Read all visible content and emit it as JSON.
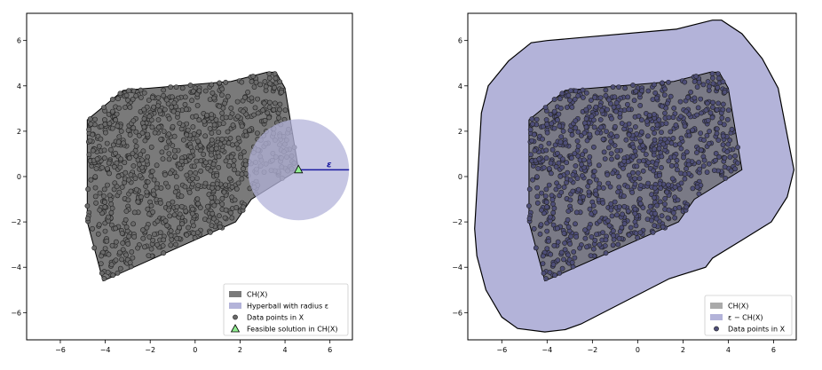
{
  "colors": {
    "hull_fill": "#7a7a7a",
    "hull_fill_right": "#7a7a86",
    "ball_fill": "#b3b3d9",
    "point_fill": "#6a6a6a",
    "point_fill_right": "#4e4e78",
    "point_edge": "#222222",
    "feasible_fill": "#90ee90",
    "eps_line": "#1a1aa0",
    "legend_hull_right": "#aaaaaa"
  },
  "chart_data": [
    {
      "type": "scatter",
      "xlim": [
        -7.5,
        7.0
      ],
      "ylim": [
        -7.2,
        7.2
      ],
      "xticks": [
        -6,
        -4,
        -2,
        0,
        2,
        4,
        6
      ],
      "yticks": [
        -6,
        -4,
        -2,
        0,
        2,
        4,
        6
      ],
      "xtick_labels": [
        "−6",
        "−4",
        "−2",
        "0",
        "2",
        "4",
        "6"
      ],
      "ytick_labels": [
        "−6",
        "−4",
        "−2",
        "0",
        "2",
        "4",
        "6"
      ],
      "grid": false,
      "legend_position": "lower-right",
      "hull": [
        [
          -4.1,
          -4.6
        ],
        [
          -4.8,
          -2.0
        ],
        [
          -4.8,
          2.5
        ],
        [
          -3.2,
          3.8
        ],
        [
          1.6,
          4.2
        ],
        [
          3.2,
          4.6
        ],
        [
          3.6,
          4.6
        ],
        [
          4.0,
          3.9
        ],
        [
          4.6,
          0.3
        ],
        [
          2.5,
          -1.0
        ],
        [
          1.8,
          -2.0
        ],
        [
          -4.1,
          -4.6
        ]
      ],
      "hyperball": {
        "center": [
          4.6,
          0.3
        ],
        "radius": 2.25
      },
      "epsilon_line": {
        "from": [
          4.6,
          0.3
        ],
        "to": [
          6.85,
          0.3
        ]
      },
      "epsilon_label": "ε",
      "feasible_solution": [
        4.6,
        0.3
      ],
      "points_count": 1000,
      "legend": [
        {
          "type": "patch",
          "color_key": "hull_fill",
          "label": "CH(X)"
        },
        {
          "type": "patch",
          "color_key": "ball_fill",
          "label": "Hyperball with radius ε"
        },
        {
          "type": "marker",
          "color_key": "point_fill",
          "label": "Data points in X"
        },
        {
          "type": "triangle",
          "color_key": "feasible_fill",
          "label": "Feasible solution in CH(X)"
        }
      ]
    },
    {
      "type": "scatter",
      "xlim": [
        -7.5,
        7.0
      ],
      "ylim": [
        -7.2,
        7.2
      ],
      "xticks": [
        -6,
        -4,
        -2,
        0,
        2,
        4,
        6
      ],
      "yticks": [
        -6,
        -4,
        -2,
        0,
        2,
        4,
        6
      ],
      "xtick_labels": [
        "−6",
        "−4",
        "−2",
        "0",
        "2",
        "4",
        "6"
      ],
      "ytick_labels": [
        "−6",
        "−4",
        "−2",
        "0",
        "2",
        "4",
        "6"
      ],
      "grid": false,
      "legend_position": "lower-right",
      "hull": [
        [
          -4.1,
          -4.6
        ],
        [
          -4.8,
          -2.0
        ],
        [
          -4.8,
          2.5
        ],
        [
          -3.2,
          3.8
        ],
        [
          1.6,
          4.2
        ],
        [
          3.2,
          4.6
        ],
        [
          3.6,
          4.6
        ],
        [
          4.0,
          3.9
        ],
        [
          4.6,
          0.3
        ],
        [
          2.5,
          -1.0
        ],
        [
          1.8,
          -2.0
        ],
        [
          -4.1,
          -4.6
        ]
      ],
      "eps_hull": [
        [
          -7.2,
          -2.3
        ],
        [
          -6.9,
          2.8
        ],
        [
          -6.6,
          4.0
        ],
        [
          -5.7,
          5.1
        ],
        [
          -4.7,
          5.9
        ],
        [
          -4.0,
          6.0
        ],
        [
          1.7,
          6.5
        ],
        [
          3.3,
          6.9
        ],
        [
          3.7,
          6.9
        ],
        [
          4.6,
          6.3
        ],
        [
          5.5,
          5.2
        ],
        [
          6.2,
          3.9
        ],
        [
          6.8,
          0.8
        ],
        [
          6.9,
          0.3
        ],
        [
          6.6,
          -0.9
        ],
        [
          5.9,
          -2.0
        ],
        [
          4.6,
          -2.8
        ],
        [
          3.3,
          -3.6
        ],
        [
          3.0,
          -4.0
        ],
        [
          1.4,
          -4.5
        ],
        [
          -2.5,
          -6.5
        ],
        [
          -3.2,
          -6.75
        ],
        [
          -4.1,
          -6.85
        ],
        [
          -5.3,
          -6.7
        ],
        [
          -6.0,
          -6.2
        ],
        [
          -6.7,
          -5.0
        ],
        [
          -7.1,
          -3.5
        ],
        [
          -7.2,
          -2.3
        ]
      ],
      "points_count": 1000,
      "legend": [
        {
          "type": "patch",
          "color_key": "legend_hull_right",
          "label": "CH(X)"
        },
        {
          "type": "patch",
          "color_key": "ball_fill",
          "label": "ε − CH(X)"
        },
        {
          "type": "marker",
          "color_key": "point_fill_right",
          "label": "Data points in X"
        }
      ]
    }
  ]
}
